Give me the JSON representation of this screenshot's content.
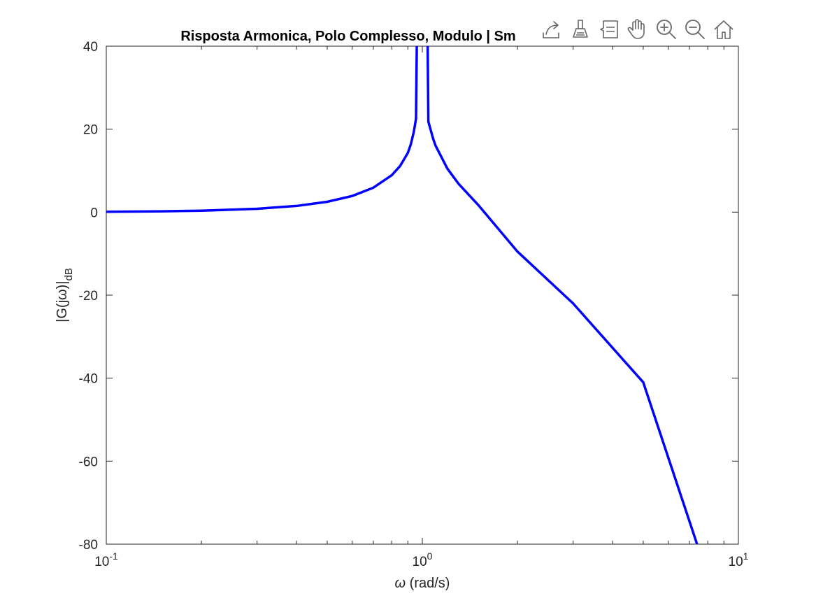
{
  "toolbar": {
    "buttons": [
      {
        "name": "export-icon"
      },
      {
        "name": "brush-icon"
      },
      {
        "name": "data-tips-icon"
      },
      {
        "name": "pan-icon"
      },
      {
        "name": "zoom-in-icon"
      },
      {
        "name": "zoom-out-icon"
      },
      {
        "name": "home-icon"
      }
    ]
  },
  "chart_data": {
    "type": "line",
    "title": "Risposta Armonica, Polo Complesso, Modulo | Sm",
    "xlabel_symbol": "ω",
    "xlabel_text": " (rad/s)",
    "ylabel_main": "|G(jω)|",
    "ylabel_sub": "dB",
    "x_scale": "log",
    "xlim": [
      0.1,
      10
    ],
    "ylim": [
      -80,
      40
    ],
    "x_ticks": [
      {
        "value": 0.1,
        "base": "10",
        "exp": "-1"
      },
      {
        "value": 1,
        "base": "10",
        "exp": "0"
      },
      {
        "value": 10,
        "base": "10",
        "exp": "1"
      }
    ],
    "y_ticks": [
      {
        "value": 40,
        "label": "40"
      },
      {
        "value": 20,
        "label": "20"
      },
      {
        "value": 0,
        "label": "0"
      },
      {
        "value": -20,
        "label": "-20"
      },
      {
        "value": -40,
        "label": "-40"
      },
      {
        "value": -60,
        "label": "-60"
      },
      {
        "value": -80,
        "label": "-80"
      }
    ],
    "grid": false,
    "series": [
      {
        "color": "#0000ff",
        "x": [
          0.1,
          0.15,
          0.2,
          0.3,
          0.4,
          0.5,
          0.6,
          0.7,
          0.8,
          0.85,
          0.9,
          0.92,
          0.94,
          0.955,
          1.045,
          1.06,
          1.08,
          1.1,
          1.2,
          1.3,
          1.5,
          2,
          3,
          5,
          7.4
        ],
        "y": [
          0.09,
          0.2,
          0.35,
          0.82,
          1.5,
          2.5,
          3.9,
          5.9,
          8.9,
          11.1,
          14.3,
          16.4,
          19.4,
          22.5,
          21.8,
          20.1,
          17.9,
          16.1,
          10.5,
          6.9,
          1.8,
          -9.5,
          -22.0,
          -41.0,
          -80.0
        ]
      }
    ]
  }
}
